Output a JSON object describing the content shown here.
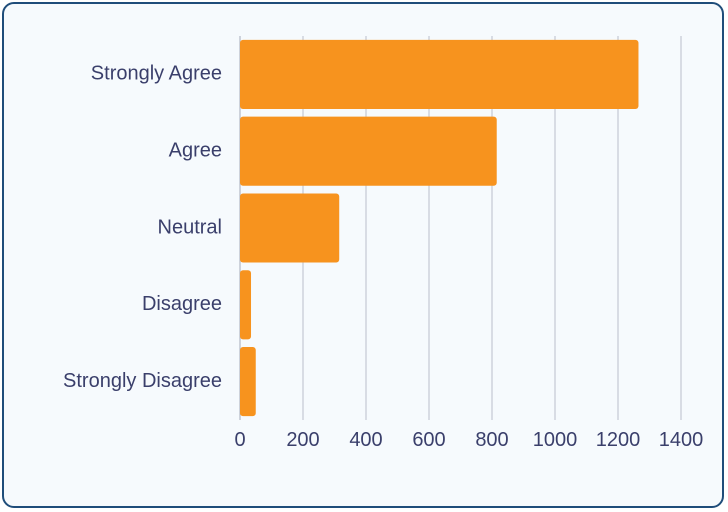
{
  "chart_data": {
    "type": "bar",
    "orientation": "horizontal",
    "categories": [
      "Strongly Agree",
      "Agree",
      "Neutral",
      "Disagree",
      "Strongly Disagree"
    ],
    "values": [
      1265,
      815,
      315,
      35,
      50
    ],
    "xlim": [
      0,
      1400
    ],
    "xticks": [
      0,
      200,
      400,
      600,
      800,
      1000,
      1200,
      1400
    ],
    "title": "",
    "xlabel": "",
    "ylabel": "",
    "grid": "vertical",
    "legend": "none",
    "bar_color": "#f7931e"
  }
}
